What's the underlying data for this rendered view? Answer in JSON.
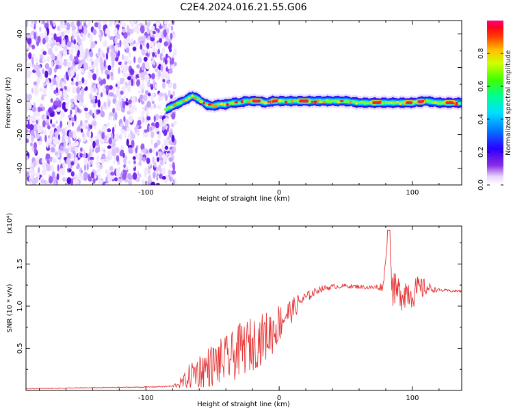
{
  "title": "C2E4.2024.016.21.55.G06",
  "colors": {
    "snr_line": "#e53030",
    "signal_core": "#ff2020",
    "noise": "#6a1be0",
    "axis": "#000000"
  },
  "chart_data": [
    {
      "type": "heatmap",
      "xlabel": "Height of straight line (km)",
      "ylabel": "Frequency (Hz)",
      "xlim": [
        -190,
        137
      ],
      "ylim": [
        -50,
        48
      ],
      "x_ticks": [
        -100,
        0,
        100
      ],
      "y_ticks": [
        -40,
        -20,
        0,
        20,
        40
      ],
      "colorbar": {
        "label": "Normalized spectral amplitude",
        "range": [
          0,
          1
        ],
        "ticks": [
          "0.0",
          "0.2",
          "0.4",
          "0.6",
          "0.8"
        ],
        "tick_values": [
          0,
          0.2,
          0.4,
          0.6,
          0.8
        ],
        "colormap": "rainbow (white, violet, blue, cyan, green, yellow, orange, red)"
      },
      "noise_region_x": [
        -190,
        -82
      ],
      "signal_track": {
        "x": [
          -85,
          -80,
          -72,
          -65,
          -60,
          -55,
          -50,
          -45,
          -40,
          -35,
          -30,
          -25,
          -20,
          -15,
          -10,
          -5,
          0,
          10,
          20,
          30,
          40,
          50,
          60,
          70,
          80,
          90,
          100,
          110,
          120,
          130,
          137
        ],
        "freq": [
          -5,
          -3,
          0,
          3,
          1,
          -2,
          -3,
          -2,
          -2,
          -1,
          -1,
          0,
          0,
          0,
          -1,
          0,
          0,
          0,
          0,
          0,
          0,
          0,
          -1,
          -1,
          -1,
          -1,
          -1,
          0,
          -1,
          -1,
          -1
        ]
      }
    },
    {
      "type": "line",
      "xlabel": "Height of straight line (km)",
      "ylabel": "SNR (10 * v/v)",
      "y_multiplier": "(x10⁴)",
      "xlim": [
        -190,
        137
      ],
      "ylim": [
        0,
        1.95
      ],
      "x_ticks": [
        -100,
        0,
        100
      ],
      "y_ticks": [
        0.5,
        1.0,
        1.5
      ],
      "y_tick_labels": [
        "0.5",
        "1.0",
        "1.5"
      ],
      "series": [
        {
          "x": [
            -190,
            -150,
            -100,
            -80,
            -72,
            -65,
            -58,
            -50,
            -42,
            -35,
            -28,
            -20,
            -12,
            -5,
            0,
            5,
            10,
            15,
            20,
            25,
            30,
            40,
            50,
            60,
            70,
            78,
            82,
            85,
            90,
            95,
            100,
            105,
            110,
            115,
            120,
            130,
            137
          ],
          "y": [
            0.02,
            0.03,
            0.04,
            0.05,
            0.1,
            0.2,
            0.25,
            0.3,
            0.35,
            0.4,
            0.5,
            0.55,
            0.62,
            0.7,
            0.8,
            0.9,
            0.95,
            1.05,
            1.1,
            1.15,
            1.2,
            1.23,
            1.24,
            1.23,
            1.22,
            1.23,
            1.9,
            1.2,
            1.15,
            1.18,
            1.15,
            1.2,
            1.22,
            1.2,
            1.19,
            1.18,
            1.18
          ],
          "amplitude": [
            0.004,
            0.005,
            0.006,
            0.01,
            0.08,
            0.18,
            0.22,
            0.26,
            0.28,
            0.3,
            0.32,
            0.32,
            0.3,
            0.28,
            0.24,
            0.18,
            0.14,
            0.1,
            0.07,
            0.05,
            0.04,
            0.03,
            0.025,
            0.025,
            0.03,
            0.05,
            0.0,
            0.2,
            0.22,
            0.2,
            0.18,
            0.16,
            0.1,
            0.04,
            0.02,
            0.015,
            0.015
          ]
        }
      ]
    }
  ]
}
